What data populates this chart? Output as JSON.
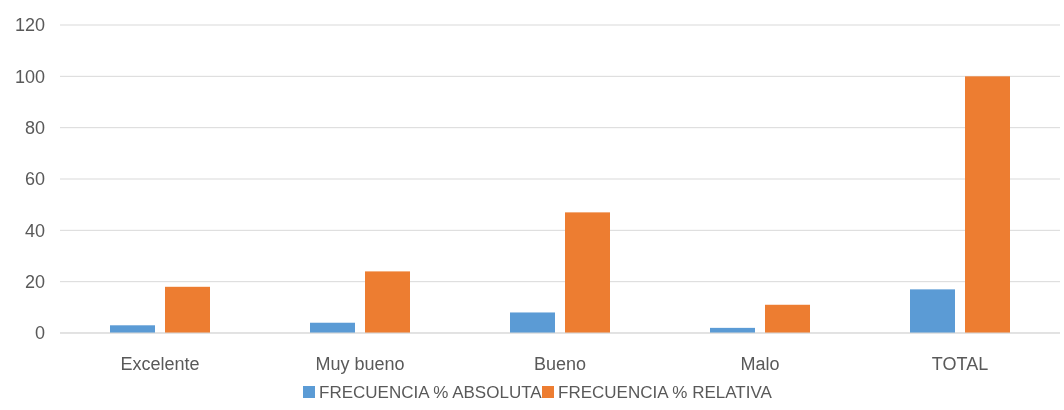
{
  "chart_data": {
    "type": "bar",
    "categories": [
      "Excelente",
      "Muy bueno",
      "Bueno",
      "Malo",
      "TOTAL"
    ],
    "series": [
      {
        "name": "FRECUENCIA % ABSOLUTA",
        "color": "#5b9bd5",
        "values": [
          3,
          4,
          8,
          2,
          17
        ]
      },
      {
        "name": "FRECUENCIA % RELATIVA",
        "color": "#ed7d31",
        "values": [
          18,
          24,
          47,
          11,
          100
        ]
      }
    ],
    "ylim": [
      0,
      120
    ],
    "yticks": [
      0,
      20,
      40,
      60,
      80,
      100,
      120
    ],
    "grid": "y",
    "legend": "bottom"
  }
}
